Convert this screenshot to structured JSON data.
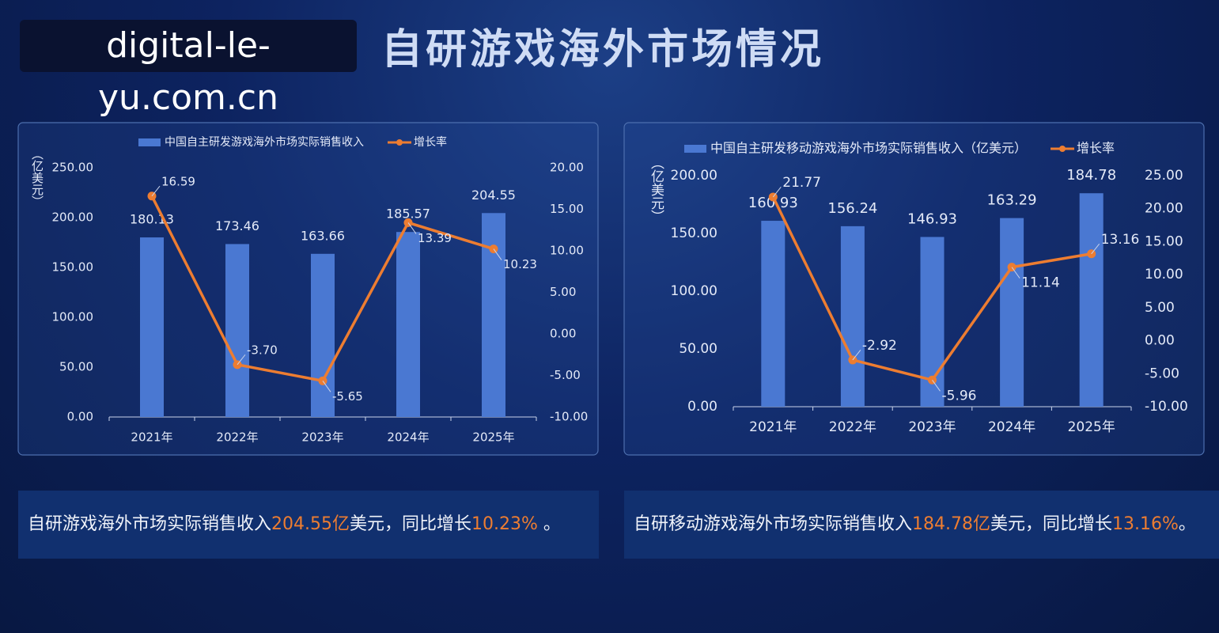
{
  "watermark": "digital-le-yu.com.cn",
  "title": "自研游戏海外市场情况",
  "chart_data": [
    {
      "type": "bar_line",
      "ylabel": "（亿美元）",
      "categories": [
        "2021年",
        "2022年",
        "2023年",
        "2024年",
        "2025年"
      ],
      "series": [
        {
          "name": "中国自主研发游戏海外市场实际销售收入",
          "type": "bar",
          "color": "#4a78d2",
          "values": [
            180.13,
            173.46,
            163.66,
            185.57,
            204.55
          ]
        },
        {
          "name": "增长率",
          "type": "line",
          "axis": "y2",
          "color": "#ed7d31",
          "values": [
            16.59,
            -3.7,
            -5.65,
            13.39,
            10.23
          ],
          "value_labels": [
            "16.59",
            "-3.70",
            "-5.65",
            "13.39",
            "10.23"
          ]
        }
      ],
      "ylim": [
        0,
        250
      ],
      "yticks": [
        {
          "value": 0,
          "label": "0.00"
        },
        {
          "value": 50,
          "label": "50.00"
        },
        {
          "value": 100,
          "label": "100.00"
        },
        {
          "value": 150,
          "label": "150.00"
        },
        {
          "value": 200,
          "label": "200.00"
        },
        {
          "value": 250,
          "label": "250.00"
        }
      ],
      "y2lim": [
        -10,
        20
      ],
      "y2ticks": [
        {
          "value": -10,
          "label": "-10.00"
        },
        {
          "value": -5,
          "label": "-5.00"
        },
        {
          "value": 0,
          "label": "0.00"
        },
        {
          "value": 5,
          "label": "5.00"
        },
        {
          "value": 10,
          "label": "10.00"
        },
        {
          "value": 15,
          "label": "15.00"
        },
        {
          "value": 20,
          "label": "20.00"
        }
      ]
    },
    {
      "type": "bar_line",
      "ylabel": "（亿美元）",
      "categories": [
        "2021年",
        "2022年",
        "2023年",
        "2024年",
        "2025年"
      ],
      "series": [
        {
          "name": "中国自主研发移动游戏海外市场实际销售收入（亿美元）",
          "type": "bar",
          "color": "#4a78d2",
          "values": [
            160.93,
            156.24,
            146.93,
            163.29,
            184.78
          ]
        },
        {
          "name": "增长率",
          "type": "line",
          "axis": "y2",
          "color": "#ed7d31",
          "values": [
            21.77,
            -2.92,
            -5.96,
            11.14,
            13.16
          ]
        }
      ],
      "ylim": [
        0,
        200
      ],
      "yticks": [
        {
          "value": 0,
          "label": "0.00"
        },
        {
          "value": 50,
          "label": "50.00"
        },
        {
          "value": 100,
          "label": "100.00"
        },
        {
          "value": 150,
          "label": "150.00"
        },
        {
          "value": 200,
          "label": "200.00"
        }
      ],
      "y2lim": [
        -10,
        25
      ],
      "y2ticks": [
        {
          "value": -10,
          "label": "-10.00"
        },
        {
          "value": -5,
          "label": "-5.00"
        },
        {
          "value": 0,
          "label": "0.00"
        },
        {
          "value": 5,
          "label": "5.00"
        },
        {
          "value": 10,
          "label": "10.00"
        },
        {
          "value": 15,
          "label": "15.00"
        },
        {
          "value": 20,
          "label": "20.00"
        },
        {
          "value": 25,
          "label": "25.00"
        }
      ]
    }
  ],
  "captions": [
    {
      "parts": [
        "自研游戏海外市场实际销售收入",
        "204.55亿",
        "美元，同比增长",
        "10.23%",
        " 。"
      ]
    },
    {
      "parts": [
        "自研移动游戏海外市场实际销售收入",
        "184.78亿",
        "美元，同比增长",
        "13.16%",
        "。"
      ]
    }
  ]
}
